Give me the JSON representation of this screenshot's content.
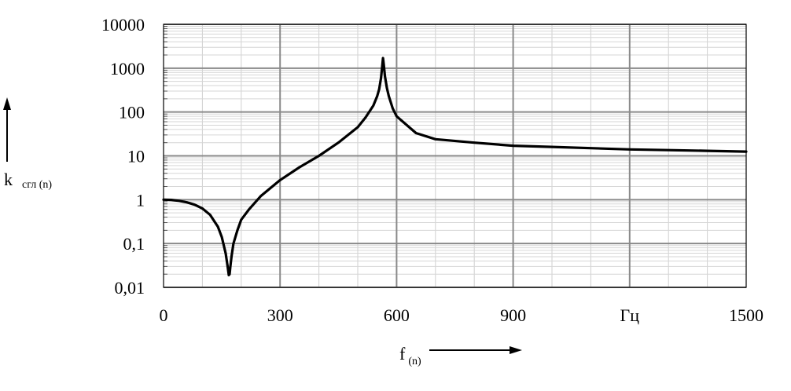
{
  "chart_data": {
    "type": "line",
    "x_axis": {
      "range": [
        0,
        1500
      ],
      "major_ticks": [
        0,
        300,
        600,
        900,
        1200,
        1500
      ],
      "tick_labels": [
        "0",
        "300",
        "600",
        "900",
        "Гц",
        "1500"
      ],
      "minor_step": 100,
      "label_main": "f",
      "label_sub": "(n)"
    },
    "y_axis": {
      "scale": "log",
      "range": [
        0.01,
        10000
      ],
      "major_ticks": [
        0.01,
        0.1,
        1,
        10,
        100,
        1000,
        10000
      ],
      "tick_labels": [
        "0,01",
        "0,1",
        "1",
        "10",
        "100",
        "1000",
        "10000"
      ],
      "label_main": "k",
      "label_sub": "сгл (n)"
    },
    "grid": true,
    "series": [
      {
        "line_color": "#000000",
        "x": [
          0,
          20,
          40,
          60,
          80,
          100,
          120,
          140,
          150,
          160,
          165,
          168,
          170,
          172,
          175,
          180,
          190,
          200,
          220,
          250,
          300,
          350,
          400,
          450,
          500,
          520,
          540,
          550,
          555,
          560,
          563,
          565,
          567,
          570,
          575,
          580,
          590,
          600,
          650,
          700,
          800,
          900,
          1000,
          1100,
          1200,
          1300,
          1400,
          1500
        ],
        "y": [
          1.0,
          0.99,
          0.94,
          0.87,
          0.77,
          0.63,
          0.45,
          0.24,
          0.14,
          0.06,
          0.03,
          0.019,
          0.02,
          0.03,
          0.05,
          0.1,
          0.2,
          0.35,
          0.6,
          1.2,
          2.8,
          5.5,
          10,
          20,
          45,
          75,
          140,
          230,
          330,
          600,
          1100,
          1700,
          1200,
          650,
          350,
          230,
          120,
          80,
          33,
          24,
          20,
          17,
          16,
          15,
          14,
          13.5,
          13,
          12.5
        ]
      }
    ]
  }
}
